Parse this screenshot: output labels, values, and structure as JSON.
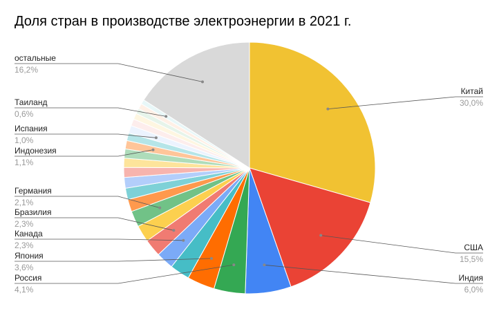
{
  "chart_data": {
    "type": "pie",
    "title": "Доля стран в производстве электроэнергии в 2021 г.",
    "slices": [
      {
        "label": "Китай",
        "value": 30.0,
        "pct_text": "30,0%",
        "color": "#F1C232"
      },
      {
        "label": "США",
        "value": 15.5,
        "pct_text": "15,5%",
        "color": "#EA4335"
      },
      {
        "label": "Индия",
        "value": 6.0,
        "pct_text": "6,0%",
        "color": "#4285F4"
      },
      {
        "label": "Россия",
        "value": 4.1,
        "pct_text": "4,1%",
        "color": "#34A853"
      },
      {
        "label": "Япония",
        "value": 3.6,
        "pct_text": "3,6%",
        "color": "#FF6D01"
      },
      {
        "label": "",
        "value": 2.6,
        "color": "#46BDC6"
      },
      {
        "label": "Канада",
        "value": 2.3,
        "pct_text": "2,3%",
        "color": "#7BAAF7"
      },
      {
        "label": "Бразилия",
        "value": 2.3,
        "pct_text": "2,3%",
        "color": "#F07B72"
      },
      {
        "label": "",
        "value": 2.2,
        "color": "#FCD04F"
      },
      {
        "label": "Германия",
        "value": 2.1,
        "pct_text": "2,1%",
        "color": "#71C287"
      },
      {
        "label": "",
        "value": 1.6,
        "color": "#FF994D"
      },
      {
        "label": "",
        "value": 1.5,
        "color": "#7ED1D7"
      },
      {
        "label": "",
        "value": 1.4,
        "color": "#B3CEFB"
      },
      {
        "label": "",
        "value": 1.3,
        "color": "#F7B4AE"
      },
      {
        "label": "",
        "value": 1.2,
        "color": "#FDE49B"
      },
      {
        "label": "",
        "value": 1.2,
        "color": "#AEDCBA"
      },
      {
        "label": "Индонезия",
        "value": 1.1,
        "pct_text": "1,1%",
        "color": "#FFC599"
      },
      {
        "label": "",
        "value": 1.0,
        "color": "#B5E5E8"
      },
      {
        "label": "Испания",
        "value": 1.0,
        "pct_text": "1,0%",
        "color": "#ECF3FE"
      },
      {
        "label": "",
        "value": 0.9,
        "color": "#FDEDEC"
      },
      {
        "label": "",
        "value": 0.8,
        "color": "#FEF6E1"
      },
      {
        "label": "",
        "value": 0.7,
        "color": "#E6F4EA"
      },
      {
        "label": "",
        "value": 0.7,
        "color": "#FFF0E6"
      },
      {
        "label": "Таиланд",
        "value": 0.6,
        "pct_text": "0,6%",
        "color": "#E8F7F8"
      },
      {
        "label": "остальные",
        "value": 16.2,
        "pct_text": "16,2%",
        "color": "#D9D9D9"
      }
    ],
    "legend": "none"
  }
}
